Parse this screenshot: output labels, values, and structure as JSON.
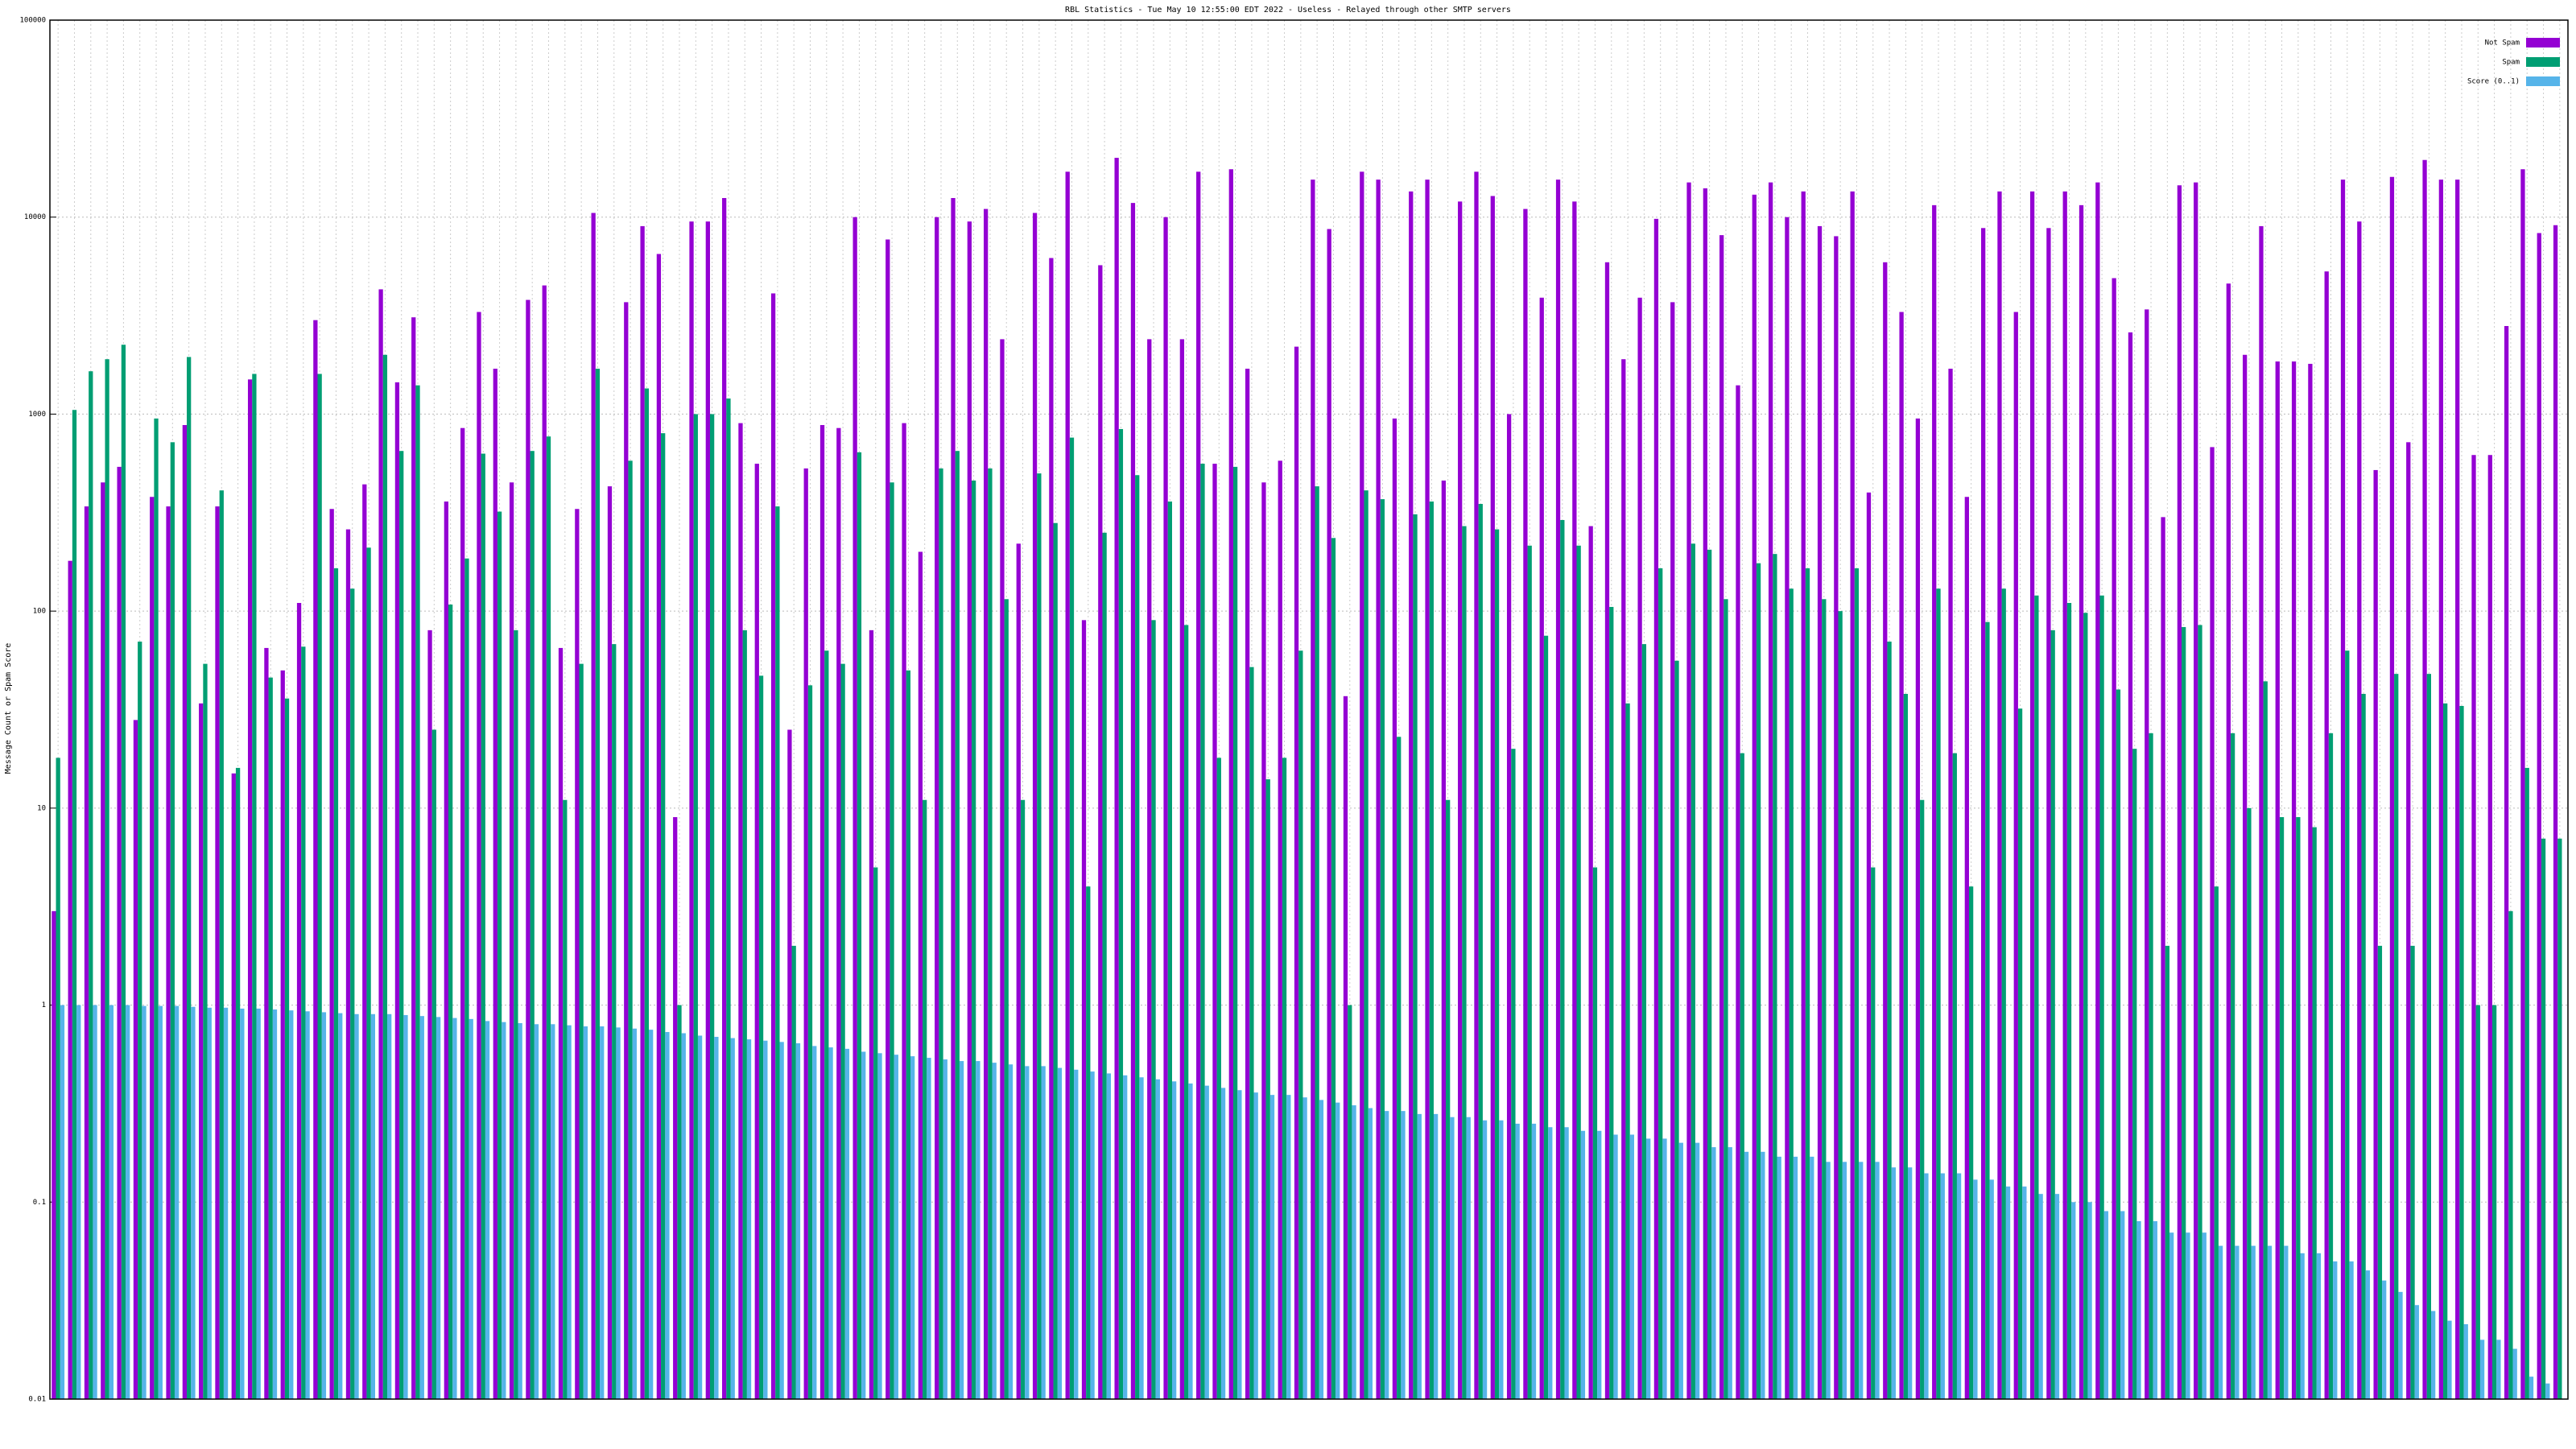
{
  "chart_data": {
    "type": "bar",
    "title": "RBL Statistics - Tue May 10 12:55:00 EDT 2022 - Useless - Relayed through other SMTP servers",
    "y_label": "Message Count or Spam Score",
    "log_scale": true,
    "grid": true,
    "legend": "top-right",
    "ylim": [
      0.01,
      100000
    ],
    "yticks": [
      0.01,
      0.1,
      1,
      10,
      100,
      1000,
      10000,
      100000
    ],
    "series": [
      {
        "name": "Not Spam",
        "color": "#9400d3",
        "values": [
          3,
          180,
          340,
          450,
          540,
          28,
          380,
          340,
          880,
          34,
          340,
          15,
          1500,
          65,
          50,
          110,
          3000,
          330,
          260,
          440,
          4300,
          1450,
          3100,
          80,
          360,
          850,
          3300,
          1700,
          450,
          3800,
          4500,
          65,
          330,
          10500,
          430,
          3700,
          9000,
          6500,
          9,
          9500,
          9500,
          12500,
          900,
          560,
          4100,
          25,
          530,
          880,
          850,
          10000,
          80,
          7700,
          900,
          200,
          10000,
          12500,
          9500,
          11000,
          2400,
          220,
          10500,
          6200,
          17000,
          90,
          5700,
          20000,
          11800,
          2400,
          10000,
          2400,
          17000,
          560,
          17500,
          1700,
          450,
          580,
          2200,
          15500,
          8700,
          37,
          17000,
          15500,
          950,
          13500,
          15500,
          460,
          12000,
          17000,
          12800,
          1000,
          11000,
          3900,
          15500,
          12000,
          270,
          5900,
          1900,
          3900,
          9800,
          3700,
          15000,
          14000,
          8100,
          1400,
          13000,
          15000,
          10000,
          13500,
          9000,
          8000,
          13500,
          400,
          5900,
          3300,
          950,
          11500,
          1700,
          380,
          8800,
          13500,
          3300,
          13500,
          8800,
          13500,
          11500,
          15000,
          4900,
          2600,
          3400,
          300,
          14500,
          15000,
          680,
          4600,
          2000,
          9000,
          1850,
          1850,
          1800,
          5300,
          15500,
          9500,
          520,
          16000,
          720,
          19500,
          15500,
          15500,
          620,
          620,
          2800,
          17500,
          8300,
          9100
        ]
      },
      {
        "name": "Spam",
        "color": "#009e73",
        "values": [
          18,
          1050,
          1650,
          1900,
          2250,
          70,
          950,
          720,
          1950,
          54,
          410,
          16,
          1600,
          46,
          36,
          66,
          1600,
          165,
          130,
          210,
          2000,
          650,
          1400,
          25,
          108,
          185,
          630,
          320,
          80,
          650,
          770,
          11,
          54,
          1700,
          68,
          580,
          1350,
          800,
          1,
          1000,
          1000,
          1200,
          80,
          47,
          340,
          2,
          42,
          63,
          54,
          640,
          5,
          450,
          50,
          11,
          530,
          650,
          460,
          530,
          115,
          11,
          500,
          280,
          760,
          4,
          250,
          840,
          490,
          90,
          360,
          85,
          560,
          18,
          540,
          52,
          14,
          18,
          63,
          430,
          235,
          1,
          410,
          370,
          23,
          310,
          360,
          11,
          270,
          350,
          260,
          20,
          215,
          75,
          290,
          215,
          5,
          105,
          34,
          68,
          165,
          56,
          220,
          205,
          115,
          19,
          175,
          195,
          130,
          165,
          115,
          100,
          165,
          5,
          70,
          38,
          11,
          130,
          19,
          4,
          88,
          130,
          32,
          120,
          80,
          110,
          98,
          120,
          40,
          20,
          24,
          2,
          83,
          85,
          4,
          24,
          10,
          44,
          9,
          9,
          8,
          24,
          63,
          38,
          2,
          48,
          2,
          48,
          34,
          33,
          1,
          1,
          3,
          16,
          7,
          7
        ]
      },
      {
        "name": "Score (0..1)",
        "color": "#56b4e9",
        "values": [
          1,
          1,
          1,
          1,
          1,
          0.99,
          0.99,
          0.99,
          0.98,
          0.97,
          0.97,
          0.96,
          0.96,
          0.95,
          0.94,
          0.93,
          0.92,
          0.91,
          0.9,
          0.9,
          0.9,
          0.89,
          0.88,
          0.87,
          0.86,
          0.85,
          0.83,
          0.82,
          0.81,
          0.8,
          0.8,
          0.79,
          0.78,
          0.78,
          0.77,
          0.76,
          0.75,
          0.73,
          0.72,
          0.7,
          0.69,
          0.68,
          0.67,
          0.66,
          0.65,
          0.64,
          0.62,
          0.61,
          0.6,
          0.58,
          0.57,
          0.56,
          0.55,
          0.54,
          0.53,
          0.52,
          0.52,
          0.51,
          0.5,
          0.49,
          0.49,
          0.48,
          0.47,
          0.46,
          0.45,
          0.44,
          0.43,
          0.42,
          0.41,
          0.4,
          0.39,
          0.38,
          0.37,
          0.36,
          0.35,
          0.35,
          0.34,
          0.33,
          0.32,
          0.31,
          0.3,
          0.29,
          0.29,
          0.28,
          0.28,
          0.27,
          0.27,
          0.26,
          0.26,
          0.25,
          0.25,
          0.24,
          0.24,
          0.23,
          0.23,
          0.22,
          0.22,
          0.21,
          0.21,
          0.2,
          0.2,
          0.19,
          0.19,
          0.18,
          0.18,
          0.17,
          0.17,
          0.17,
          0.16,
          0.16,
          0.16,
          0.16,
          0.15,
          0.15,
          0.14,
          0.14,
          0.14,
          0.13,
          0.13,
          0.12,
          0.12,
          0.11,
          0.11,
          0.1,
          0.1,
          0.09,
          0.09,
          0.08,
          0.08,
          0.07,
          0.07,
          0.07,
          0.06,
          0.06,
          0.06,
          0.06,
          0.06,
          0.055,
          0.055,
          0.05,
          0.05,
          0.045,
          0.04,
          0.035,
          0.03,
          0.028,
          0.025,
          0.024,
          0.02,
          0.02,
          0.018,
          0.013,
          0.012,
          0.01
        ]
      }
    ]
  }
}
